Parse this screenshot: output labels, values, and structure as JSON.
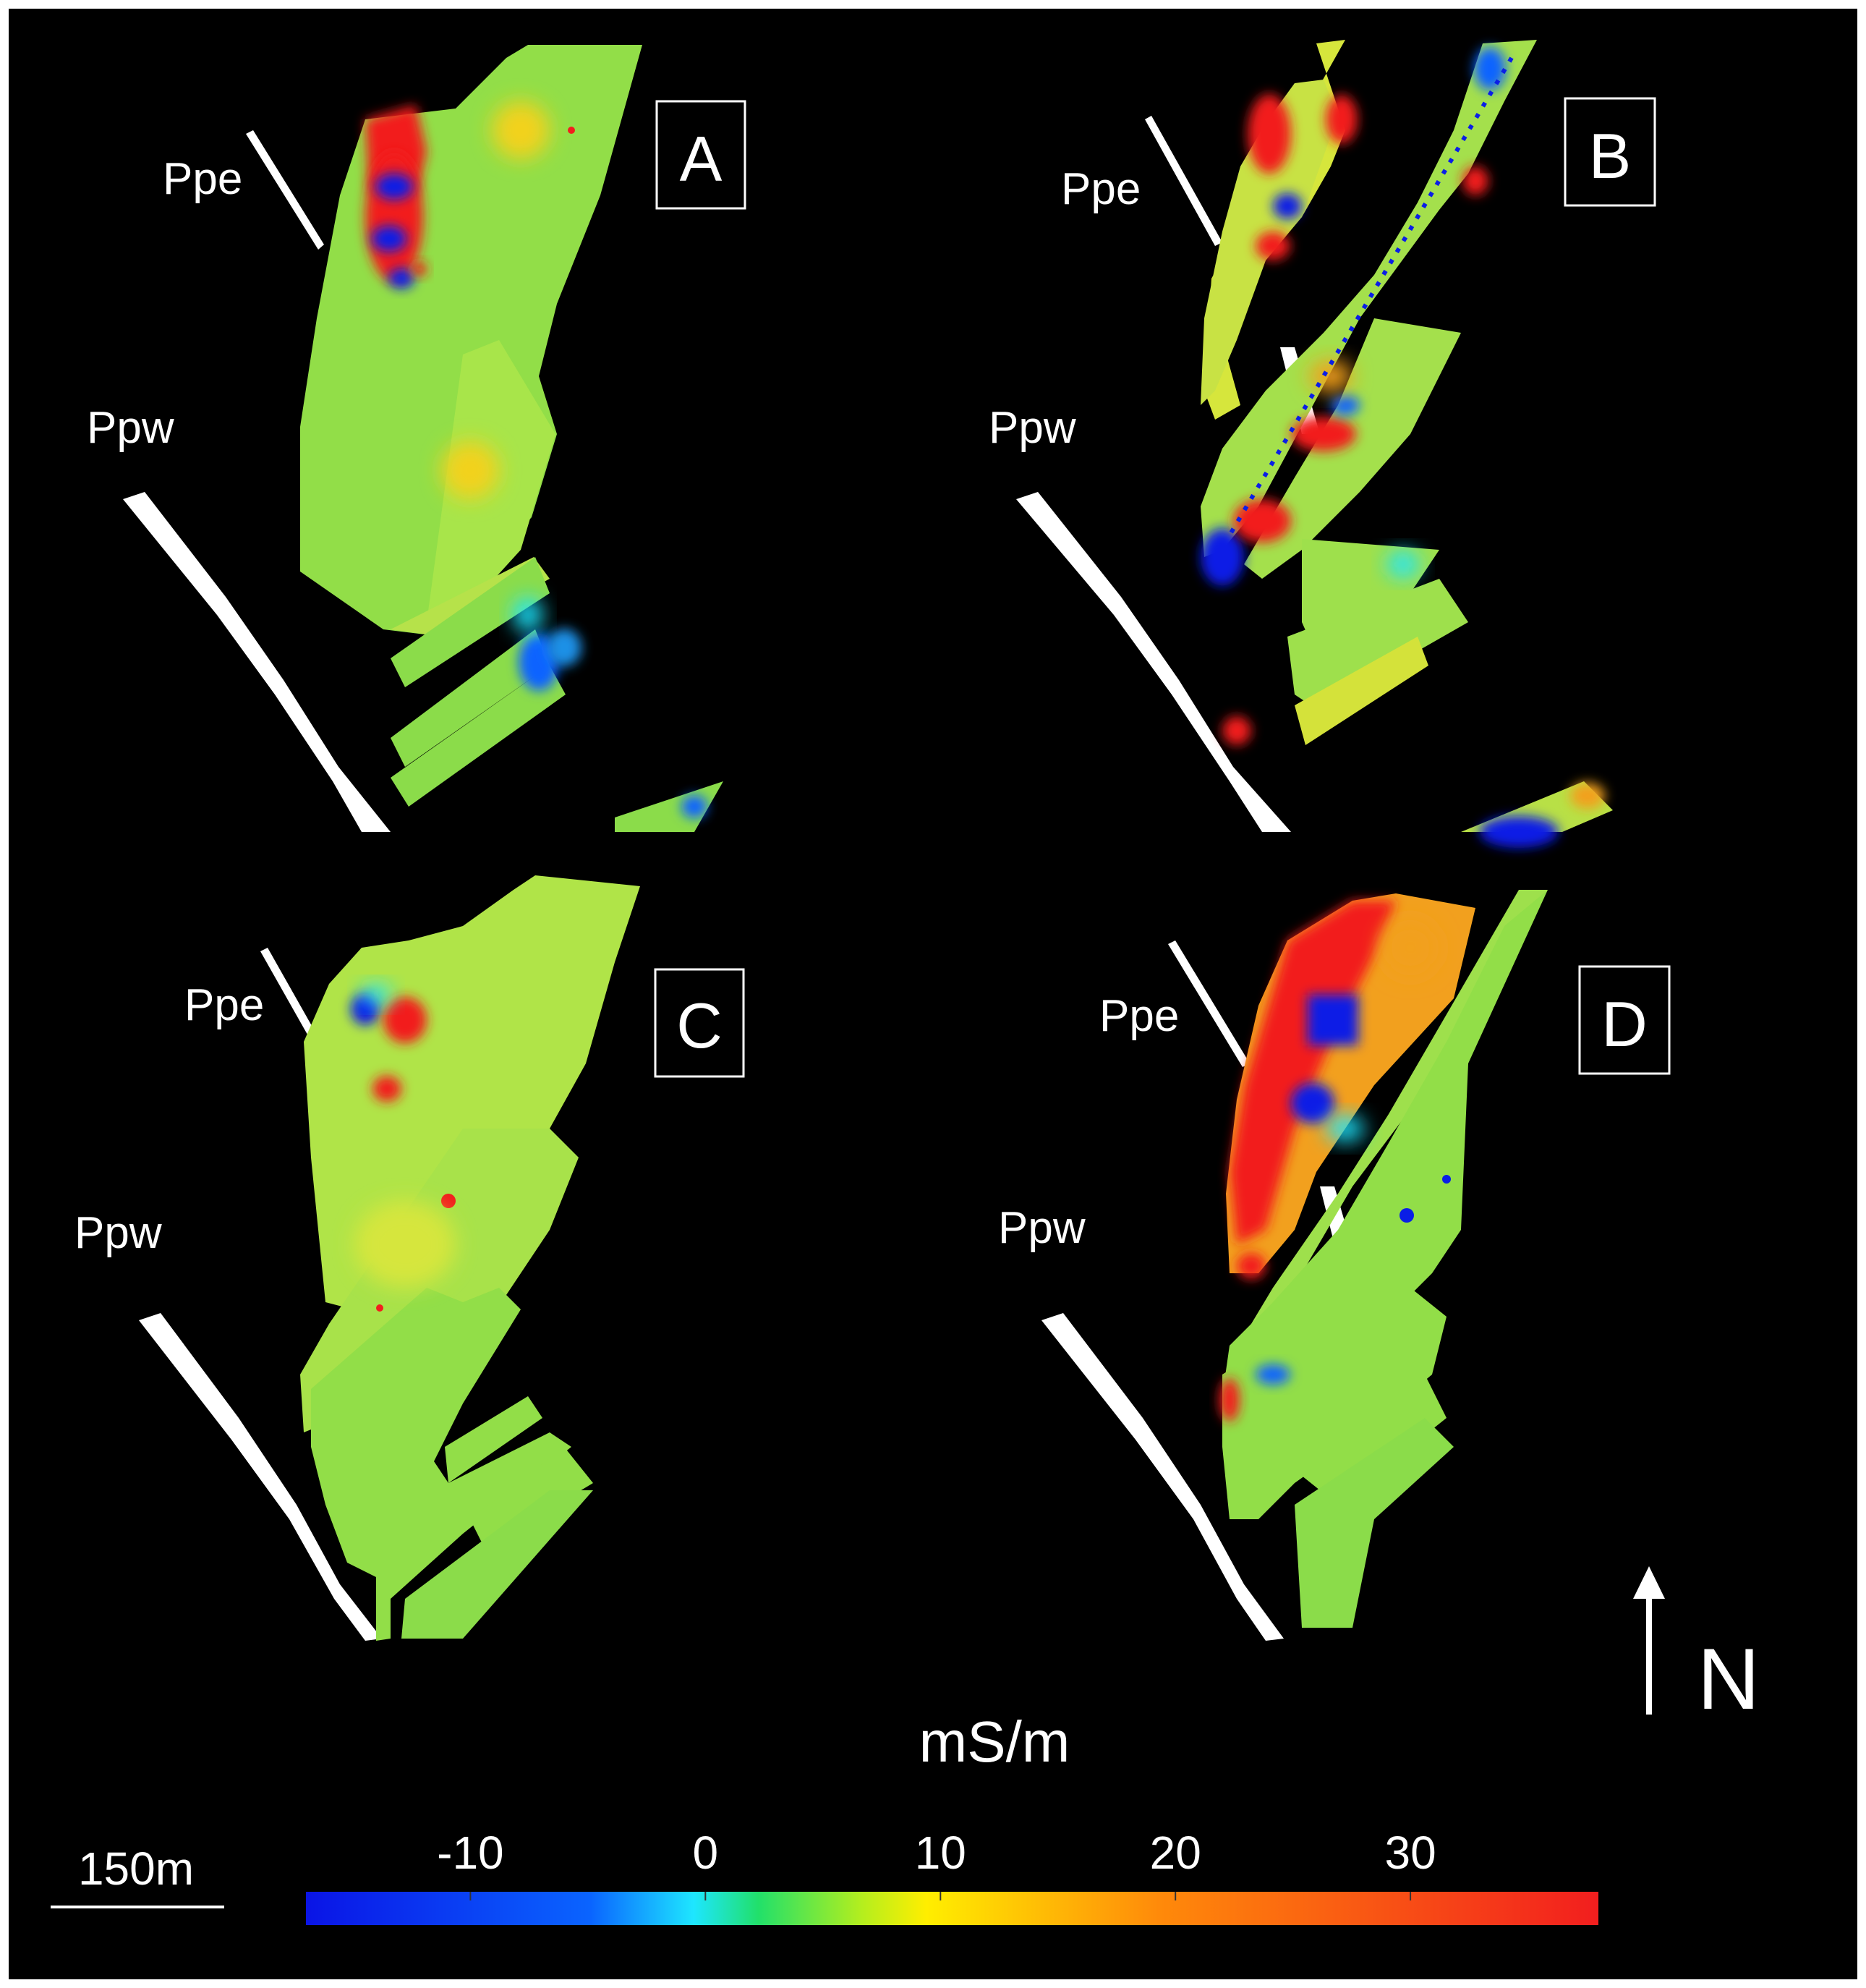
{
  "panels": [
    {
      "id": "A",
      "label": "A",
      "ppe": "Ppe",
      "ppw": "Ppw"
    },
    {
      "id": "B",
      "label": "B",
      "ppe": "Ppe",
      "ppw": "Ppw"
    },
    {
      "id": "C",
      "label": "C",
      "ppe": "Ppe",
      "ppw": "Ppw"
    },
    {
      "id": "D",
      "label": "D",
      "ppe": "Ppe",
      "ppw": "Ppw"
    }
  ],
  "north_label": "N",
  "scale_bar": {
    "label": "150m",
    "length_m": 150
  },
  "colorbar": {
    "unit": "mS/m",
    "ticks": [
      "-10",
      "0",
      "10",
      "20",
      "30"
    ],
    "tick_values": [
      -10,
      0,
      10,
      20,
      30
    ],
    "range": [
      -17,
      38
    ],
    "colors": [
      "#0a14e6",
      "#0a64ff",
      "#1ee6ff",
      "#21e06a",
      "#b4ee1e",
      "#ffee00",
      "#ff8a0a",
      "#f21e1e"
    ]
  },
  "colors": {
    "background": "#000000",
    "frame": "#ffffff",
    "road": "#ffffff",
    "survey_base": "#92de48",
    "high_conductivity": "#f21e1e",
    "low_conductivity": "#0a1ee6"
  }
}
